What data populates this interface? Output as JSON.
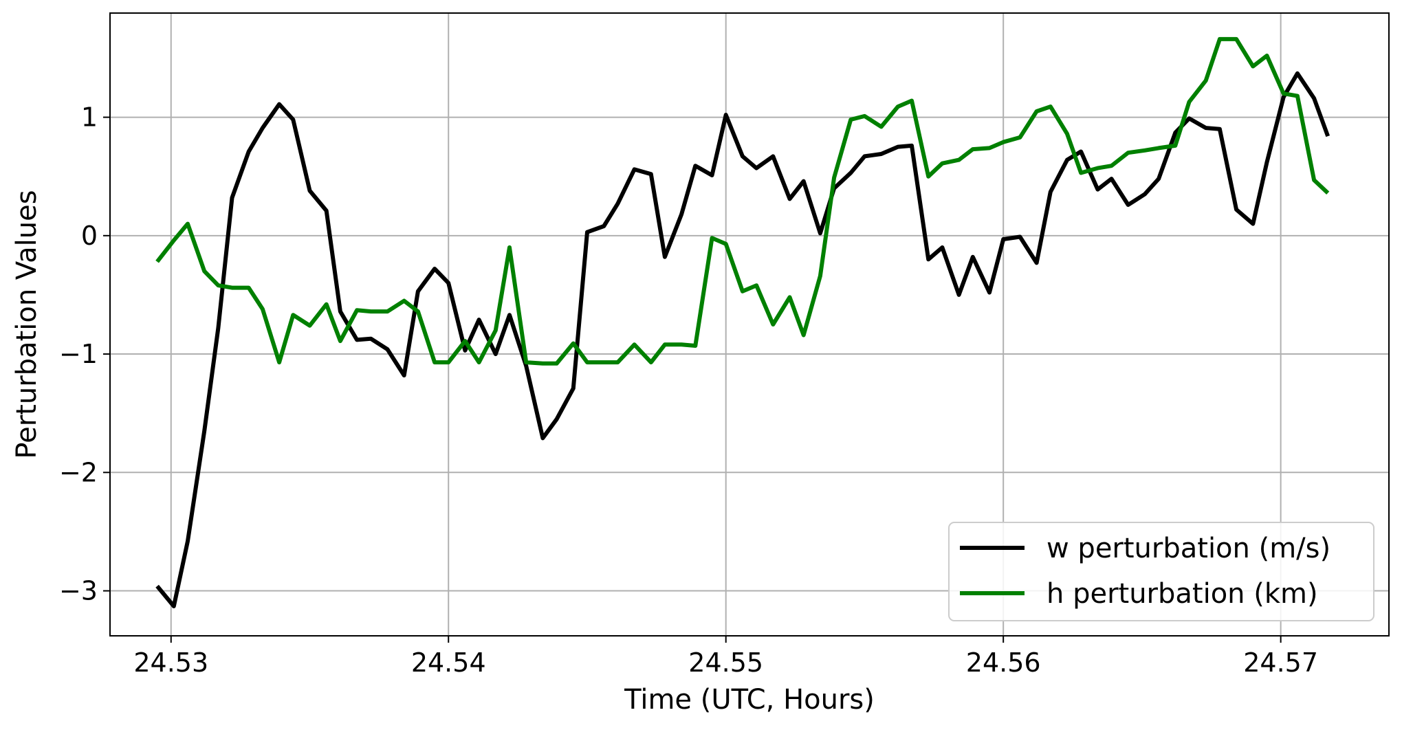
{
  "chart_data": {
    "type": "line",
    "title": "",
    "xlabel": "Time (UTC, Hours)",
    "ylabel": "Perturbation Values",
    "xlim": [
      24.5278,
      24.5739
    ],
    "ylim": [
      -3.38,
      1.88
    ],
    "xticks": [
      24.53,
      24.54,
      24.55,
      24.56,
      24.57
    ],
    "xtick_labels": [
      "24.53",
      "24.54",
      "24.55",
      "24.56",
      "24.57"
    ],
    "yticks": [
      -3,
      -2,
      -1,
      0,
      1
    ],
    "ytick_labels": [
      "−3",
      "−2",
      "−1",
      "0",
      "1"
    ],
    "grid": true,
    "legend_position": "lower-right",
    "x": [
      24.5295,
      24.5301,
      24.5306,
      24.5312,
      24.5317,
      24.5322,
      24.5328,
      24.5333,
      24.5339,
      24.5344,
      24.535,
      24.5356,
      24.5361,
      24.5367,
      24.5372,
      24.5378,
      24.5384,
      24.5389,
      24.5395,
      24.54,
      24.5406,
      24.5411,
      24.5417,
      24.5422,
      24.5428,
      24.5434,
      24.5439,
      24.5445,
      24.545,
      24.5456,
      24.5461,
      24.5467,
      24.5473,
      24.5478,
      24.5484,
      24.5489,
      24.5495,
      24.55,
      24.5506,
      24.5511,
      24.5517,
      24.5523,
      24.5528,
      24.5534,
      24.5539,
      24.5545,
      24.555,
      24.5556,
      24.5562,
      24.5567,
      24.5573,
      24.5578,
      24.5584,
      24.5589,
      24.5595,
      24.56,
      24.5606,
      24.5612,
      24.5617,
      24.5623,
      24.5628,
      24.5634,
      24.5639,
      24.5645,
      24.5651,
      24.5656,
      24.5662,
      24.5667,
      24.5673,
      24.5678,
      24.5684,
      24.569,
      24.5695,
      24.5701,
      24.5706,
      24.5712,
      24.5717,
      24.5722
    ],
    "series": [
      {
        "name": "w perturbation (m/s)",
        "color": "#000000",
        "values": [
          -2.96,
          -3.13,
          -2.58,
          -1.65,
          -0.78,
          0.32,
          0.71,
          0.91,
          1.11,
          0.98,
          0.38,
          0.21,
          -0.64,
          -0.88,
          -0.87,
          -0.96,
          -1.18,
          -0.47,
          -0.28,
          -0.4,
          -0.97,
          -0.71,
          -1.0,
          -0.67,
          -1.1,
          -1.71,
          -1.55,
          -1.29,
          0.03,
          0.08,
          0.27,
          0.56,
          0.52,
          -0.18,
          0.18,
          0.59,
          0.51,
          1.02,
          0.67,
          0.57,
          0.67,
          0.31,
          0.46,
          0.02,
          0.4,
          0.53,
          0.67,
          0.69,
          0.75,
          0.76,
          -0.2,
          -0.1,
          -0.5,
          -0.18,
          -0.48,
          -0.03,
          -0.01,
          -0.23,
          0.37,
          0.64,
          0.71,
          0.39,
          0.48,
          0.26,
          0.35,
          0.48,
          0.87,
          0.99,
          0.91,
          0.9,
          0.22,
          0.1,
          0.62,
          1.17,
          1.37,
          1.16,
          0.84,
          null
        ]
      },
      {
        "name": "h perturbation (km)",
        "color": "#008000",
        "values": [
          -0.22,
          -0.04,
          0.1,
          -0.3,
          -0.42,
          -0.44,
          -0.44,
          -0.62,
          -1.07,
          -0.67,
          -0.76,
          -0.58,
          -0.89,
          -0.63,
          -0.64,
          -0.64,
          -0.55,
          -0.64,
          -1.07,
          -1.07,
          -0.89,
          -1.07,
          -0.8,
          -0.1,
          -1.07,
          -1.08,
          -1.08,
          -0.91,
          -1.07,
          -1.07,
          -1.07,
          -0.92,
          -1.07,
          -0.92,
          -0.92,
          -0.93,
          -0.02,
          -0.07,
          -0.47,
          -0.42,
          -0.75,
          -0.52,
          -0.84,
          -0.34,
          0.49,
          0.98,
          1.01,
          0.92,
          1.09,
          1.14,
          0.5,
          0.61,
          0.64,
          0.73,
          0.74,
          0.79,
          0.83,
          1.05,
          1.09,
          0.86,
          0.53,
          0.57,
          0.59,
          0.7,
          0.72,
          0.74,
          0.76,
          1.13,
          1.31,
          1.66,
          1.66,
          1.43,
          1.52,
          1.2,
          1.18,
          0.47,
          0.36,
          null
        ]
      }
    ]
  }
}
